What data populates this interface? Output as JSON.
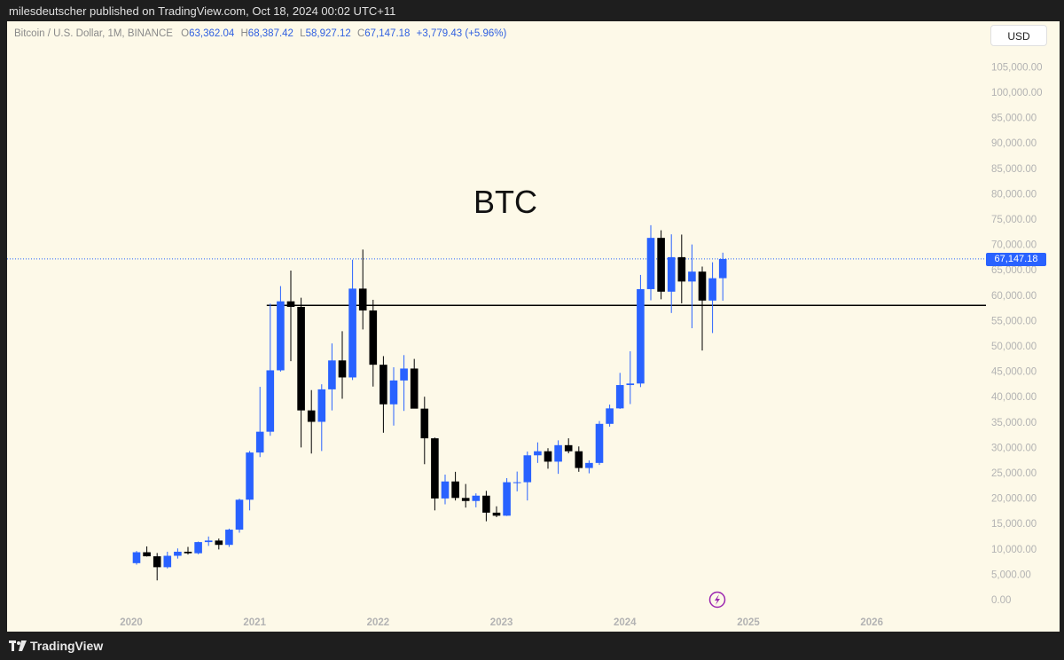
{
  "header": {
    "publisher_line": "milesdeutscher published on TradingView.com, Oct 18, 2024 00:02 UTC+11"
  },
  "legend": {
    "symbol": "Bitcoin / U.S. Dollar, 1M, BINANCE",
    "o_label": "O",
    "o_value": "63,362.04",
    "h_label": "H",
    "h_value": "68,387.42",
    "l_label": "L",
    "l_value": "58,927.12",
    "c_label": "C",
    "c_value": "67,147.18",
    "change": "+3,779.43 (+5.96%)"
  },
  "currency_button": "USD",
  "annotation": "BTC",
  "last_price_label": "67,147.18",
  "footer": {
    "brand": "TradingView"
  },
  "colors": {
    "up": "#2962ff",
    "down": "#000000",
    "background": "#fdf9e8",
    "price_line": "#2962ff"
  },
  "chart_data": {
    "type": "candlestick",
    "interval": "1M",
    "y_axis": {
      "min": 0,
      "max": 105000,
      "ticks": [
        "0.00",
        "5,000.00",
        "10,000.00",
        "15,000.00",
        "20,000.00",
        "25,000.00",
        "30,000.00",
        "35,000.00",
        "40,000.00",
        "45,000.00",
        "50,000.00",
        "55,000.00",
        "60,000.00",
        "65,000.00",
        "70,000.00",
        "75,000.00",
        "80,000.00",
        "85,000.00",
        "90,000.00",
        "95,000.00",
        "100,000.00",
        "105,000.00"
      ]
    },
    "x_axis": {
      "tick_labels": [
        "2020",
        "2021",
        "2022",
        "2023",
        "2024",
        "2025",
        "2026"
      ]
    },
    "horizontal_line": 58000,
    "current_price": 67147.18,
    "candles": [
      {
        "date": "2020-01",
        "o": 7200,
        "h": 9600,
        "l": 6900,
        "c": 9350
      },
      {
        "date": "2020-02",
        "o": 9350,
        "h": 10500,
        "l": 8500,
        "c": 8550
      },
      {
        "date": "2020-03",
        "o": 8550,
        "h": 9200,
        "l": 3800,
        "c": 6400
      },
      {
        "date": "2020-04",
        "o": 6400,
        "h": 9450,
        "l": 6150,
        "c": 8650
      },
      {
        "date": "2020-05",
        "o": 8650,
        "h": 10100,
        "l": 8100,
        "c": 9450
      },
      {
        "date": "2020-06",
        "o": 9450,
        "h": 10400,
        "l": 8900,
        "c": 9150
      },
      {
        "date": "2020-07",
        "o": 9150,
        "h": 11450,
        "l": 8950,
        "c": 11350
      },
      {
        "date": "2020-08",
        "o": 11350,
        "h": 12450,
        "l": 10600,
        "c": 11650
      },
      {
        "date": "2020-09",
        "o": 11650,
        "h": 12050,
        "l": 9900,
        "c": 10800
      },
      {
        "date": "2020-10",
        "o": 10800,
        "h": 14000,
        "l": 10400,
        "c": 13800
      },
      {
        "date": "2020-11",
        "o": 13800,
        "h": 19900,
        "l": 13200,
        "c": 19700
      },
      {
        "date": "2020-12",
        "o": 19700,
        "h": 29300,
        "l": 17600,
        "c": 29000
      },
      {
        "date": "2021-01",
        "o": 29000,
        "h": 41950,
        "l": 28100,
        "c": 33100
      },
      {
        "date": "2021-02",
        "o": 33100,
        "h": 58350,
        "l": 32300,
        "c": 45200
      },
      {
        "date": "2021-03",
        "o": 45200,
        "h": 61800,
        "l": 44950,
        "c": 58800
      },
      {
        "date": "2021-04",
        "o": 58800,
        "h": 64850,
        "l": 47000,
        "c": 57700
      },
      {
        "date": "2021-05",
        "o": 57700,
        "h": 59500,
        "l": 30000,
        "c": 37300
      },
      {
        "date": "2021-06",
        "o": 37300,
        "h": 41300,
        "l": 28800,
        "c": 35050
      },
      {
        "date": "2021-07",
        "o": 35050,
        "h": 42450,
        "l": 29300,
        "c": 41450
      },
      {
        "date": "2021-08",
        "o": 41450,
        "h": 50500,
        "l": 37300,
        "c": 47150
      },
      {
        "date": "2021-09",
        "o": 47150,
        "h": 52900,
        "l": 39600,
        "c": 43800
      },
      {
        "date": "2021-10",
        "o": 43800,
        "h": 67000,
        "l": 43300,
        "c": 61300
      },
      {
        "date": "2021-11",
        "o": 61300,
        "h": 69000,
        "l": 53250,
        "c": 57000
      },
      {
        "date": "2021-12",
        "o": 57000,
        "h": 59100,
        "l": 42000,
        "c": 46300
      },
      {
        "date": "2022-01",
        "o": 46300,
        "h": 48000,
        "l": 32900,
        "c": 38500
      },
      {
        "date": "2022-02",
        "o": 38500,
        "h": 45800,
        "l": 34300,
        "c": 43200
      },
      {
        "date": "2022-03",
        "o": 43200,
        "h": 48200,
        "l": 37200,
        "c": 45550
      },
      {
        "date": "2022-04",
        "o": 45550,
        "h": 47450,
        "l": 37700,
        "c": 37650
      },
      {
        "date": "2022-05",
        "o": 37650,
        "h": 40000,
        "l": 26700,
        "c": 31800
      },
      {
        "date": "2022-06",
        "o": 31800,
        "h": 31950,
        "l": 17600,
        "c": 19950
      },
      {
        "date": "2022-07",
        "o": 19950,
        "h": 24650,
        "l": 18800,
        "c": 23300
      },
      {
        "date": "2022-08",
        "o": 23300,
        "h": 25200,
        "l": 19550,
        "c": 20050
      },
      {
        "date": "2022-09",
        "o": 20050,
        "h": 22800,
        "l": 18150,
        "c": 19450
      },
      {
        "date": "2022-10",
        "o": 19450,
        "h": 20950,
        "l": 18200,
        "c": 20500
      },
      {
        "date": "2022-11",
        "o": 20500,
        "h": 21450,
        "l": 15450,
        "c": 17150
      },
      {
        "date": "2022-12",
        "o": 17150,
        "h": 18400,
        "l": 16250,
        "c": 16550
      },
      {
        "date": "2023-01",
        "o": 16550,
        "h": 23950,
        "l": 16500,
        "c": 23150
      },
      {
        "date": "2023-02",
        "o": 23150,
        "h": 25250,
        "l": 21350,
        "c": 23150
      },
      {
        "date": "2023-03",
        "o": 23150,
        "h": 29200,
        "l": 19550,
        "c": 28450
      },
      {
        "date": "2023-04",
        "o": 28450,
        "h": 31000,
        "l": 26950,
        "c": 29250
      },
      {
        "date": "2023-05",
        "o": 29250,
        "h": 29850,
        "l": 25800,
        "c": 27200
      },
      {
        "date": "2023-06",
        "o": 27200,
        "h": 31400,
        "l": 24800,
        "c": 30450
      },
      {
        "date": "2023-07",
        "o": 30450,
        "h": 31800,
        "l": 28850,
        "c": 29250
      },
      {
        "date": "2023-08",
        "o": 29250,
        "h": 30200,
        "l": 25200,
        "c": 25950
      },
      {
        "date": "2023-09",
        "o": 25950,
        "h": 27450,
        "l": 24900,
        "c": 26950
      },
      {
        "date": "2023-10",
        "o": 26950,
        "h": 35200,
        "l": 26550,
        "c": 34650
      },
      {
        "date": "2023-11",
        "o": 34650,
        "h": 38450,
        "l": 34100,
        "c": 37700
      },
      {
        "date": "2023-12",
        "o": 37700,
        "h": 44700,
        "l": 37600,
        "c": 42300
      },
      {
        "date": "2024-01",
        "o": 42300,
        "h": 48950,
        "l": 38550,
        "c": 42600
      },
      {
        "date": "2024-02",
        "o": 42600,
        "h": 64000,
        "l": 41900,
        "c": 61200
      },
      {
        "date": "2024-03",
        "o": 61200,
        "h": 73800,
        "l": 59000,
        "c": 71300
      },
      {
        "date": "2024-04",
        "o": 71300,
        "h": 72800,
        "l": 59200,
        "c": 60700
      },
      {
        "date": "2024-05",
        "o": 60700,
        "h": 72000,
        "l": 56500,
        "c": 67500
      },
      {
        "date": "2024-06",
        "o": 67500,
        "h": 71950,
        "l": 58400,
        "c": 62700
      },
      {
        "date": "2024-07",
        "o": 62700,
        "h": 70000,
        "l": 53500,
        "c": 64650
      },
      {
        "date": "2024-08",
        "o": 64650,
        "h": 65650,
        "l": 49100,
        "c": 58950
      },
      {
        "date": "2024-09",
        "o": 58950,
        "h": 66500,
        "l": 52550,
        "c": 63350
      },
      {
        "date": "2024-10",
        "o": 63362.04,
        "h": 68387.42,
        "l": 58927.12,
        "c": 67147.18
      }
    ]
  }
}
